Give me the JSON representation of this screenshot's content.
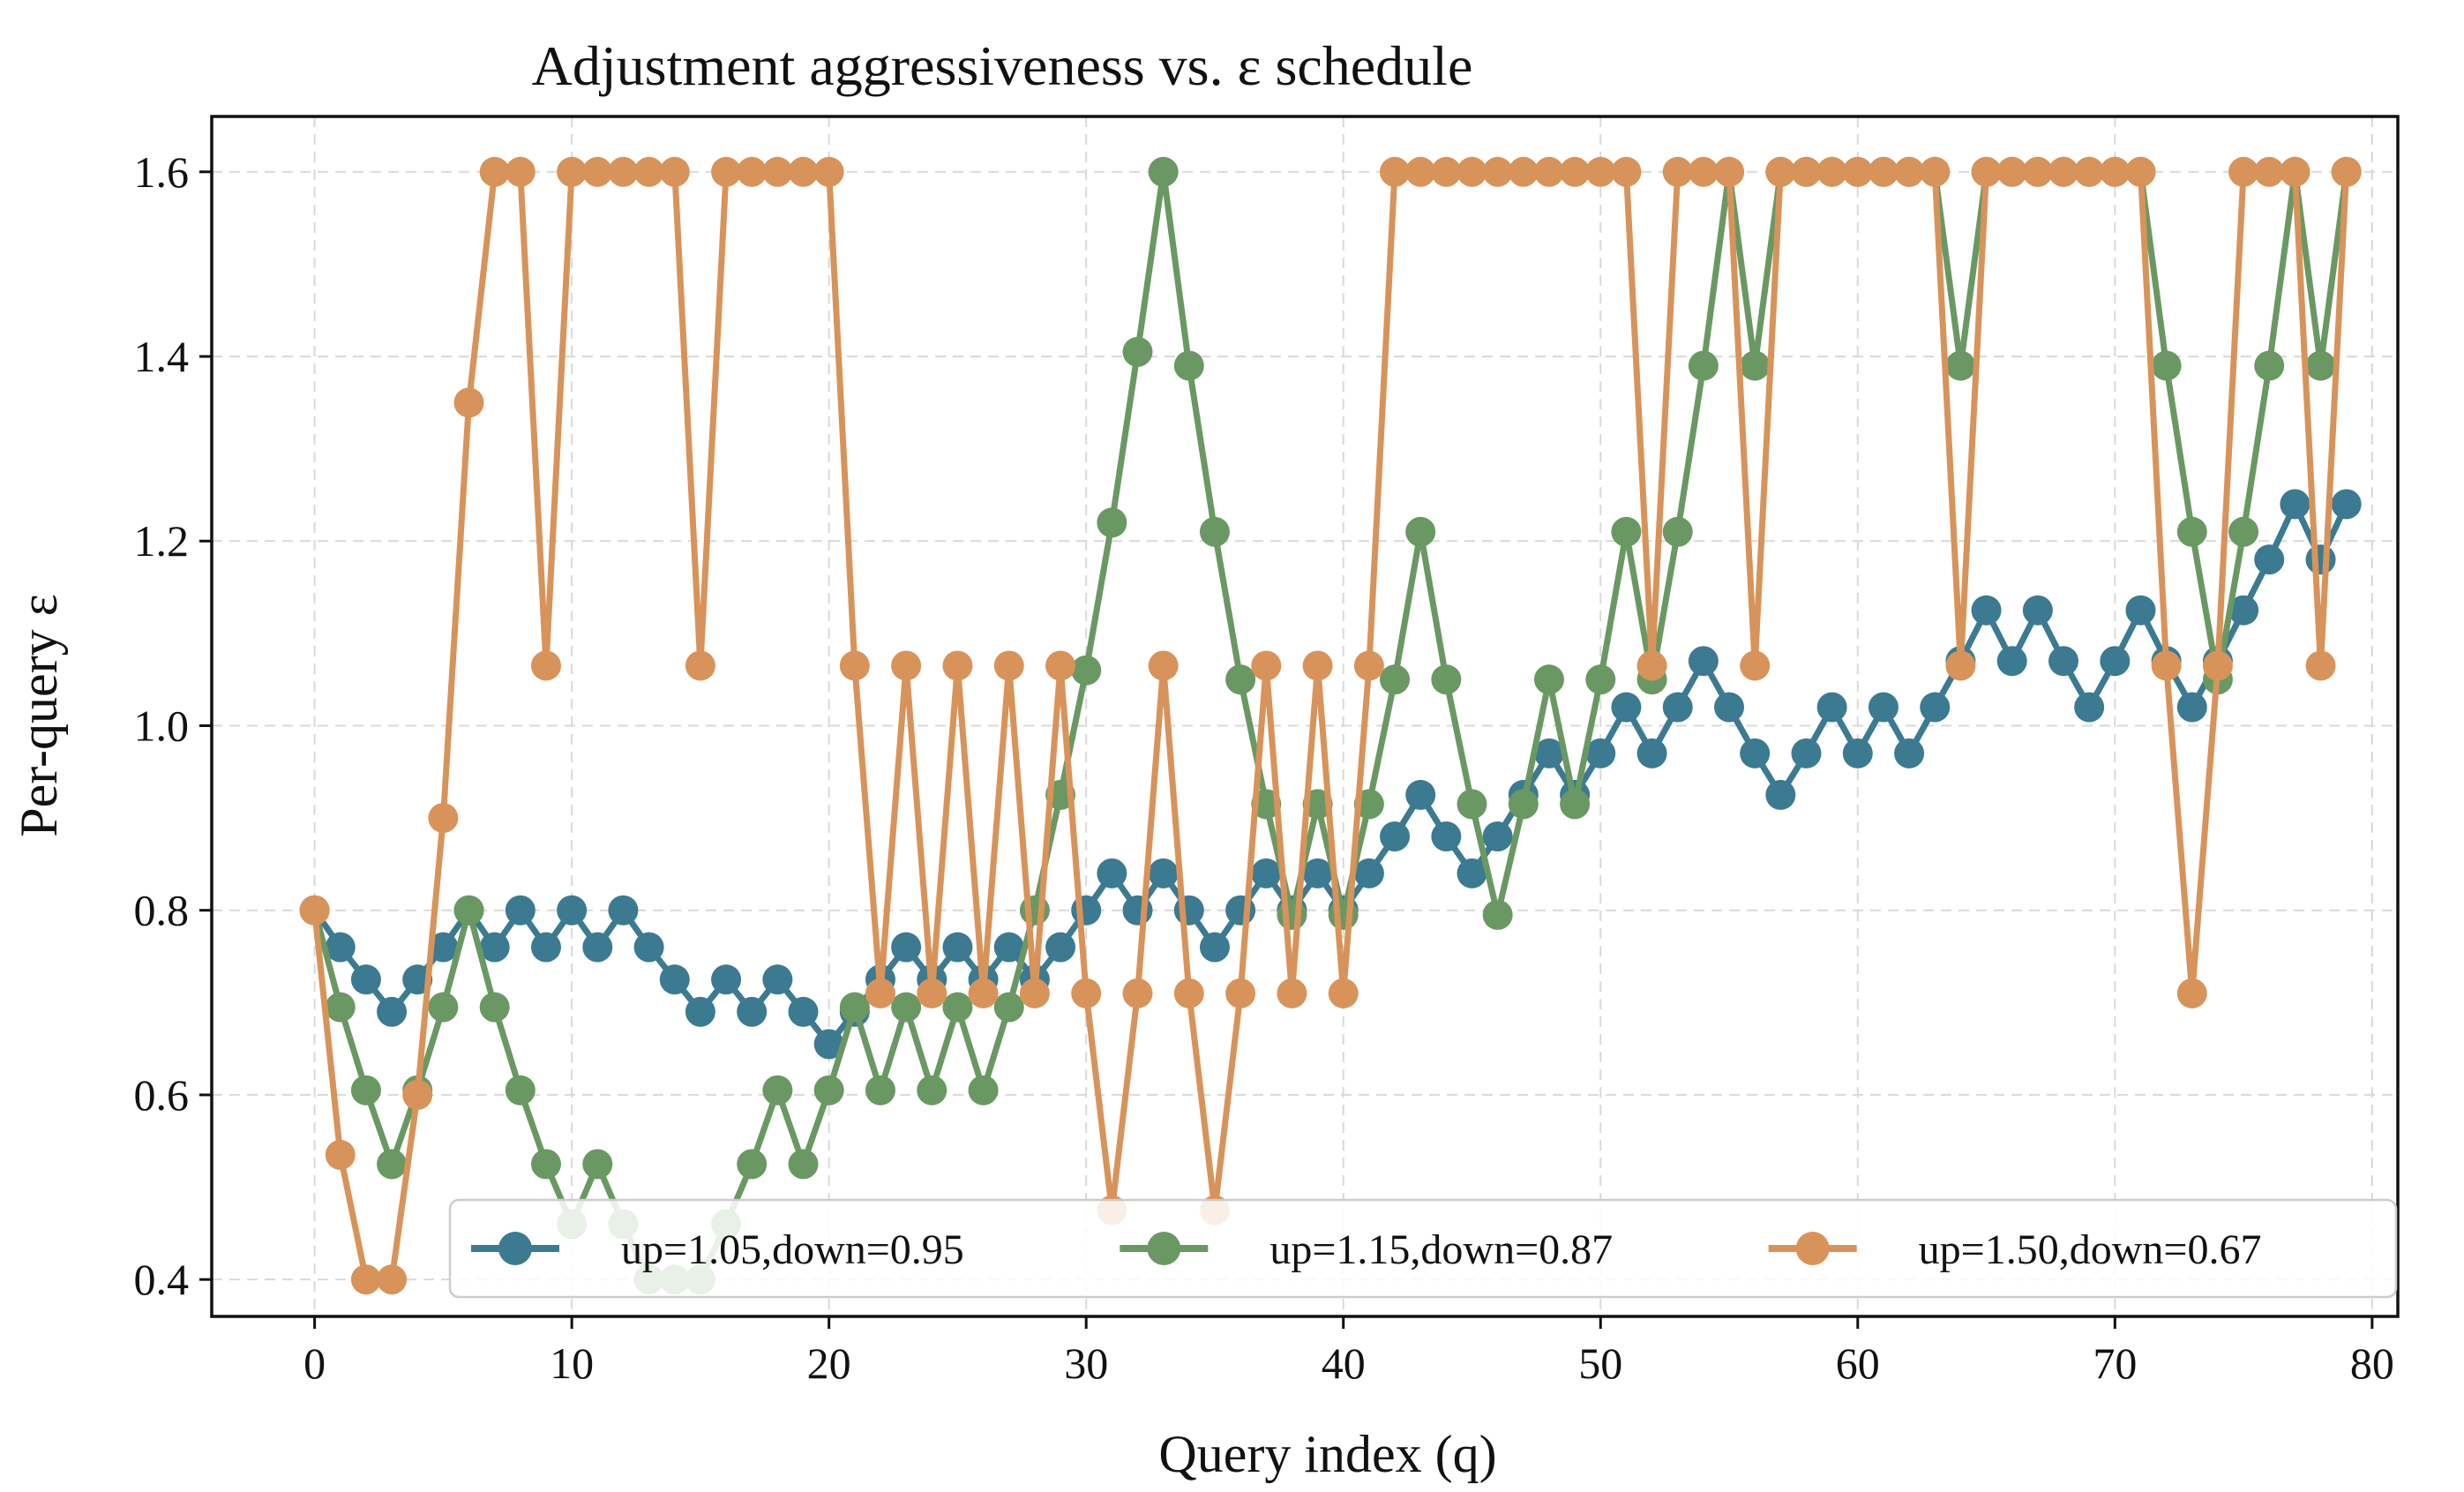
{
  "chart_data": {
    "type": "line",
    "title": "Adjustment aggressiveness vs. ε schedule",
    "xlabel": "Query index (q)",
    "ylabel": "Per-query ε",
    "xlim": [
      -4,
      81
    ],
    "ylim": [
      0.36,
      1.66
    ],
    "xticks": [
      0,
      10,
      20,
      30,
      40,
      50,
      60,
      70,
      80
    ],
    "yticks": [
      0.4,
      0.6,
      0.8,
      1.0,
      1.2,
      1.4,
      1.6
    ],
    "xtick_labels": [
      "0",
      "10",
      "20",
      "30",
      "40",
      "50",
      "60",
      "70",
      "80"
    ],
    "ytick_labels": [
      "0.4",
      "0.6",
      "0.8",
      "1.0",
      "1.2",
      "1.4",
      "1.6"
    ],
    "grid": true,
    "legend_position": "bottom-right",
    "series": [
      {
        "name": "up=1.05,down=0.95",
        "color": "#3b7a91",
        "values": [
          0.8,
          0.76,
          0.725,
          0.69,
          0.725,
          0.76,
          0.8,
          0.76,
          0.8,
          0.76,
          0.8,
          0.76,
          0.8,
          0.76,
          0.725,
          0.69,
          0.725,
          0.69,
          0.725,
          0.69,
          0.655,
          0.69,
          0.725,
          0.76,
          0.725,
          0.76,
          0.725,
          0.76,
          0.725,
          0.76,
          0.8,
          0.84,
          0.8,
          0.84,
          0.8,
          0.76,
          0.8,
          0.84,
          0.8,
          0.84,
          0.8,
          0.84,
          0.88,
          0.925,
          0.88,
          0.84,
          0.88,
          0.925,
          0.97,
          0.925,
          0.97,
          1.02,
          0.97,
          1.02,
          1.07,
          1.02,
          0.97,
          0.925,
          0.97,
          1.02,
          0.97,
          1.02,
          0.97,
          1.02,
          1.07,
          1.125,
          1.07,
          1.125,
          1.07,
          1.02,
          1.07,
          1.125,
          1.07,
          1.02,
          1.07,
          1.125,
          1.18,
          1.24,
          1.18,
          1.24
        ]
      },
      {
        "name": "up=1.15,down=0.87",
        "color": "#6a9863",
        "values": [
          0.8,
          0.695,
          0.605,
          0.525,
          0.605,
          0.695,
          0.8,
          0.695,
          0.605,
          0.525,
          0.46,
          0.525,
          0.46,
          0.4,
          0.4,
          0.4,
          0.46,
          0.525,
          0.605,
          0.525,
          0.605,
          0.695,
          0.605,
          0.695,
          0.605,
          0.695,
          0.605,
          0.695,
          0.8,
          0.925,
          1.06,
          1.22,
          1.405,
          1.6,
          1.39,
          1.21,
          1.05,
          0.915,
          0.795,
          0.915,
          0.795,
          0.915,
          1.05,
          1.21,
          1.05,
          0.915,
          0.795,
          0.915,
          1.05,
          0.915,
          1.05,
          1.21,
          1.05,
          1.21,
          1.39,
          1.6,
          1.39,
          1.6,
          1.6,
          1.6,
          1.6,
          1.6,
          1.6,
          1.6,
          1.39,
          1.6,
          1.6,
          1.6,
          1.6,
          1.6,
          1.6,
          1.6,
          1.39,
          1.21,
          1.05,
          1.21,
          1.39,
          1.6,
          1.39,
          1.6
        ]
      },
      {
        "name": "up=1.50,down=0.67",
        "color": "#d8935a",
        "values": [
          0.8,
          0.535,
          0.4,
          0.4,
          0.6,
          0.9,
          1.35,
          1.6,
          1.6,
          1.065,
          1.6,
          1.6,
          1.6,
          1.6,
          1.6,
          1.065,
          1.6,
          1.6,
          1.6,
          1.6,
          1.6,
          1.065,
          0.71,
          1.065,
          0.71,
          1.065,
          0.71,
          1.065,
          0.71,
          1.065,
          0.71,
          0.475,
          0.71,
          1.065,
          0.71,
          0.475,
          0.71,
          1.065,
          0.71,
          1.065,
          0.71,
          1.065,
          1.6,
          1.6,
          1.6,
          1.6,
          1.6,
          1.6,
          1.6,
          1.6,
          1.6,
          1.6,
          1.065,
          1.6,
          1.6,
          1.6,
          1.065,
          1.6,
          1.6,
          1.6,
          1.6,
          1.6,
          1.6,
          1.6,
          1.065,
          1.6,
          1.6,
          1.6,
          1.6,
          1.6,
          1.6,
          1.6,
          1.065,
          0.71,
          1.065,
          1.6,
          1.6,
          1.6,
          1.065,
          1.6
        ]
      }
    ]
  }
}
